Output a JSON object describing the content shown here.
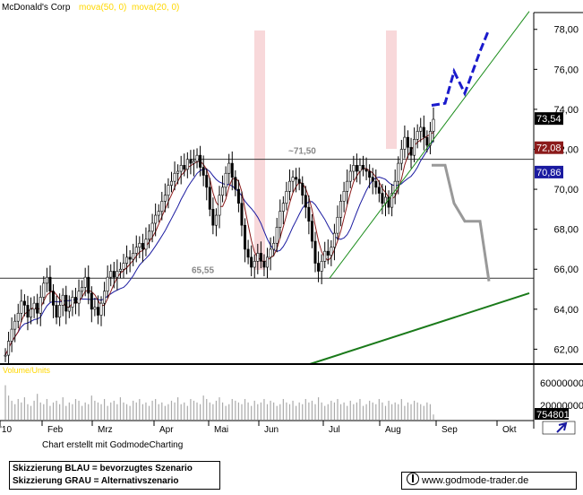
{
  "chart_data": {
    "type": "candlestick",
    "title": "McDonald's Corp",
    "indicators": [
      {
        "label": "mova(50, 0)",
        "color": "#ffd700"
      },
      {
        "label": "mova(20, 0)",
        "color": "#ffd700"
      }
    ],
    "x_labels": [
      "'10",
      "Feb",
      "Mrz",
      "Apr",
      "Mai",
      "Jun",
      "Jul",
      "Aug",
      "Sep",
      "Okt"
    ],
    "y_ticks": [
      "78,00",
      "76,00",
      "74,00",
      "72,00",
      "70,00",
      "68,00",
      "66,00",
      "64,00",
      "62,00"
    ],
    "ylim": [
      61.3,
      79.2
    ],
    "price_labels": [
      {
        "text": "73,54",
        "value": 73.54,
        "bg": "#000000",
        "fg": "#ffffff"
      },
      {
        "text": "72,08",
        "value": 72.08,
        "bg": "#8b1a1a",
        "fg": "#ffffff"
      },
      {
        "text": "70,86",
        "value": 70.86,
        "bg": "#1a1aa0",
        "fg": "#ffffff"
      }
    ],
    "levels": [
      {
        "label": "~71,50",
        "value": 71.5
      },
      {
        "label": "65,55",
        "value": 65.55
      }
    ],
    "approx_closes": [
      61.7,
      62.4,
      63.0,
      63.4,
      63.8,
      64.4,
      64.2,
      63.6,
      64.0,
      64.3,
      63.8,
      64.6,
      65.3,
      65.6,
      64.9,
      64.2,
      63.6,
      64.2,
      64.7,
      63.9,
      64.1,
      64.6,
      64.3,
      64.9,
      65.1,
      65.6,
      64.8,
      64.0,
      64.1,
      63.7,
      64.3,
      64.9,
      65.6,
      65.9,
      65.6,
      65.9,
      66.0,
      66.3,
      66.6,
      66.5,
      66.8,
      67.1,
      67.3,
      67.0,
      67.5,
      67.9,
      68.3,
      68.7,
      68.9,
      69.4,
      69.7,
      70.2,
      70.4,
      70.8,
      70.9,
      71.2,
      71.0,
      71.5,
      71.3,
      71.4,
      71.7,
      71.1,
      70.7,
      70.1,
      69.0,
      68.2,
      68.7,
      69.7,
      70.1,
      70.8,
      71.3,
      70.6,
      70.0,
      69.3,
      68.2,
      67.0,
      66.6,
      66.1,
      66.4,
      66.8,
      66.4,
      66.1,
      66.6,
      67.0,
      67.3,
      68.1,
      68.9,
      69.3,
      69.9,
      70.4,
      70.6,
      70.5,
      70.3,
      69.7,
      69.1,
      68.4,
      67.4,
      66.3,
      65.9,
      66.4,
      66.9,
      66.7,
      67.1,
      67.8,
      68.6,
      69.4,
      69.9,
      70.4,
      70.9,
      71.2,
      70.9,
      71.2,
      71.0,
      70.9,
      70.6,
      70.4,
      70.1,
      69.8,
      69.3,
      69.6,
      69.1,
      69.8,
      70.4,
      71.3,
      72.0,
      72.6,
      72.1,
      71.7,
      72.5,
      72.9,
      73.1,
      72.6,
      72.2,
      72.9,
      73.5
    ],
    "ma50_label": "mova(50, 0)",
    "ma20_label": "mova(20, 0)",
    "scenarios": [
      {
        "name": "Skizzierung BLAU = bevorzugtes Szenario",
        "color": "#1a1acc",
        "points": [
          [
            0,
            74.2
          ],
          [
            1,
            74.3
          ],
          [
            2,
            75.9
          ],
          [
            3,
            74.8
          ],
          [
            4,
            76.9
          ],
          [
            5,
            78.0
          ]
        ]
      },
      {
        "name": "Skizzierung GRAU = Alternativszenario",
        "color": "#999999",
        "points": [
          [
            0,
            71.2
          ],
          [
            1,
            71.2
          ],
          [
            2,
            69.3
          ],
          [
            3,
            68.4
          ],
          [
            4,
            68.4
          ],
          [
            5,
            65.4
          ]
        ]
      }
    ],
    "volume": {
      "label": "Volume/Units",
      "y_ticks": [
        "60000000",
        "20000000"
      ],
      "last_label": "754801",
      "approx_values": [
        20,
        14,
        11,
        9,
        12,
        10,
        13,
        9,
        8,
        11,
        15,
        10,
        9,
        12,
        8,
        10,
        11,
        9,
        13,
        8,
        10,
        9,
        12,
        11,
        8,
        10,
        9,
        14,
        11,
        10,
        9,
        12,
        8,
        10,
        11,
        9,
        13,
        10,
        9,
        8,
        11,
        10,
        12,
        9,
        10,
        8,
        11,
        12,
        9,
        10,
        8,
        9,
        11,
        10,
        13,
        9,
        10,
        8,
        12,
        11,
        10,
        9,
        14,
        12,
        10,
        9,
        11,
        13,
        10,
        8,
        9,
        12,
        11,
        10,
        9,
        12,
        10,
        8,
        11,
        9,
        10,
        12,
        9,
        11,
        10,
        8,
        9,
        12,
        10,
        9,
        11,
        8,
        10,
        9,
        12,
        10,
        11,
        9,
        13,
        10,
        8,
        9,
        11,
        10,
        12,
        9,
        10,
        8,
        11,
        9,
        10,
        12,
        8,
        9,
        11,
        10,
        9,
        12,
        10,
        8,
        11,
        9,
        10,
        9,
        12,
        8,
        10,
        9,
        11,
        10,
        9,
        8,
        10,
        9,
        3
      ]
    }
  },
  "footer": {
    "credit": "Chart erstellt mit GodmodeCharting",
    "legend_blue": "Skizzierung BLAU = bevorzugtes Szenario",
    "legend_grey": "Skizzierung GRAU = Alternativszenario",
    "url": "www.godmode-trader.de"
  }
}
